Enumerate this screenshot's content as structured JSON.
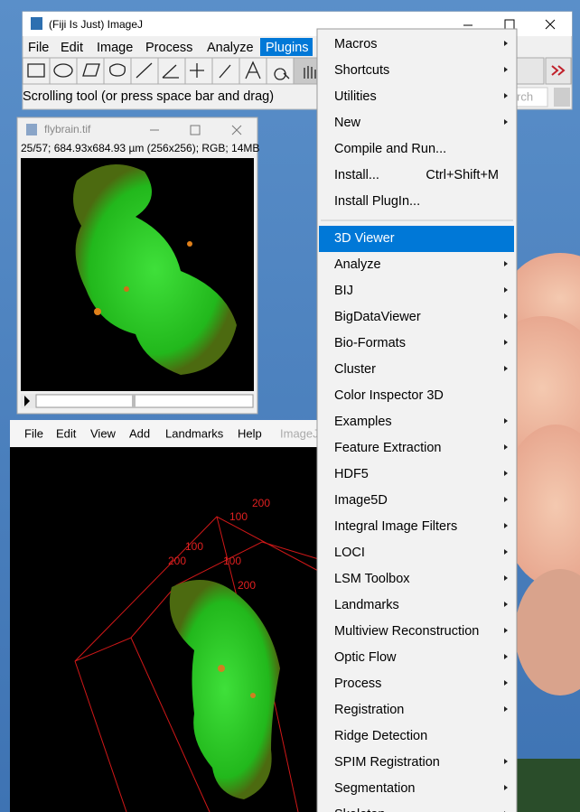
{
  "main_window": {
    "title": "(Fiji Is Just) ImageJ",
    "menu": [
      "File",
      "Edit",
      "Image",
      "Process",
      "Analyze",
      "Plugins"
    ],
    "active_menu": 5,
    "status": "Scrolling tool (or press space bar and drag)",
    "search_text": "rch"
  },
  "image_window": {
    "title": "flybrain.tif",
    "info": "25/57; 684.93x684.93 µm (256x256); RGB; 14MB"
  },
  "viewer_window": {
    "menu": [
      "File",
      "Edit",
      "View",
      "Add",
      "Landmarks",
      "Help",
      "ImageJ"
    ],
    "axis_labels": [
      "200",
      "100",
      "100",
      "200",
      "100",
      "200"
    ]
  },
  "plugins_menu": {
    "items": [
      {
        "label": "Macros",
        "submenu": true
      },
      {
        "label": "Shortcuts",
        "submenu": true
      },
      {
        "label": "Utilities",
        "submenu": true
      },
      {
        "label": "New",
        "submenu": true
      },
      {
        "label": "Compile and Run...",
        "submenu": false
      },
      {
        "label": "Install...",
        "shortcut": "Ctrl+Shift+M",
        "submenu": false
      },
      {
        "label": "Install PlugIn...",
        "submenu": false
      },
      {
        "label": "3D Viewer",
        "submenu": false,
        "selected": true,
        "separator_before": true
      },
      {
        "label": "Analyze",
        "submenu": true
      },
      {
        "label": "BIJ",
        "submenu": true
      },
      {
        "label": "BigDataViewer",
        "submenu": true
      },
      {
        "label": "Bio-Formats",
        "submenu": true
      },
      {
        "label": "Cluster",
        "submenu": true
      },
      {
        "label": "Color Inspector 3D",
        "submenu": false
      },
      {
        "label": "Examples",
        "submenu": true
      },
      {
        "label": "Feature Extraction",
        "submenu": true
      },
      {
        "label": "HDF5",
        "submenu": true
      },
      {
        "label": "Image5D",
        "submenu": true
      },
      {
        "label": "Integral Image Filters",
        "submenu": true
      },
      {
        "label": "LOCI",
        "submenu": true
      },
      {
        "label": "LSM Toolbox",
        "submenu": true
      },
      {
        "label": "Landmarks",
        "submenu": true
      },
      {
        "label": "Multiview Reconstruction",
        "submenu": true
      },
      {
        "label": "Optic Flow",
        "submenu": true
      },
      {
        "label": "Process",
        "submenu": true
      },
      {
        "label": "Registration",
        "submenu": true
      },
      {
        "label": "Ridge Detection",
        "submenu": false
      },
      {
        "label": "SPIM Registration",
        "submenu": true
      },
      {
        "label": "Segmentation",
        "submenu": true
      },
      {
        "label": "Skeleton",
        "submenu": true
      }
    ]
  }
}
